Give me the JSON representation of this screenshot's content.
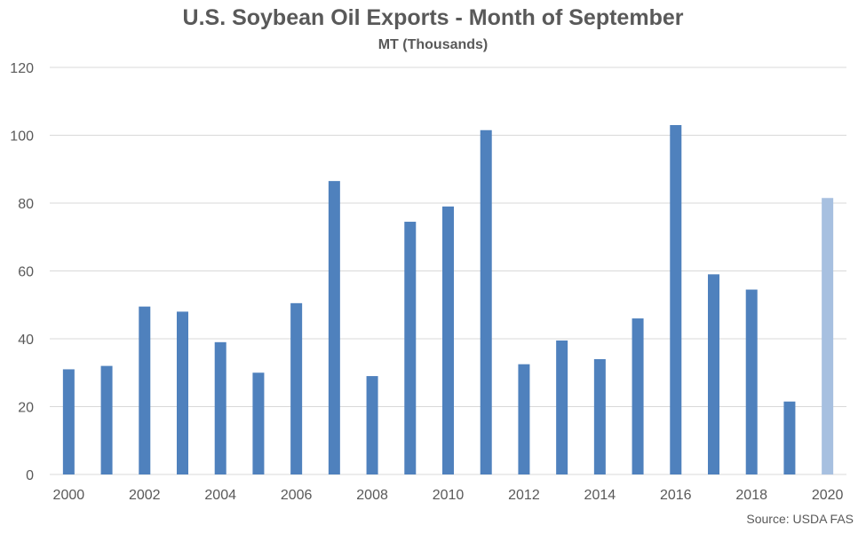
{
  "chart_data": {
    "type": "bar",
    "title": "U.S. Soybean Oil Exports - Month of September",
    "subtitle": "MT (Thousands)",
    "source": "Source: USDA FAS",
    "xlabel": "",
    "ylabel": "",
    "ylim": [
      0,
      120
    ],
    "yticks": [
      0,
      20,
      40,
      60,
      80,
      100,
      120
    ],
    "categories": [
      "2000",
      "2001",
      "2002",
      "2003",
      "2004",
      "2005",
      "2006",
      "2007",
      "2008",
      "2009",
      "2010",
      "2011",
      "2012",
      "2013",
      "2014",
      "2015",
      "2016",
      "2017",
      "2018",
      "2019",
      "2020"
    ],
    "xtick_labels": [
      "2000",
      "2002",
      "2004",
      "2006",
      "2008",
      "2010",
      "2012",
      "2014",
      "2016",
      "2018",
      "2020"
    ],
    "values": [
      31,
      32,
      49.5,
      48,
      39,
      30,
      50.5,
      86.5,
      29,
      74.5,
      79,
      101.5,
      32.5,
      39.5,
      34,
      46,
      103,
      59,
      54.5,
      21.5,
      81.5
    ],
    "colors": {
      "bar": "#4f81bd",
      "highlight": "#a7c0e0",
      "grid": "#d9d9d9",
      "text": "#595959"
    },
    "highlight_category": "2020",
    "grid": true,
    "legend": "none"
  }
}
